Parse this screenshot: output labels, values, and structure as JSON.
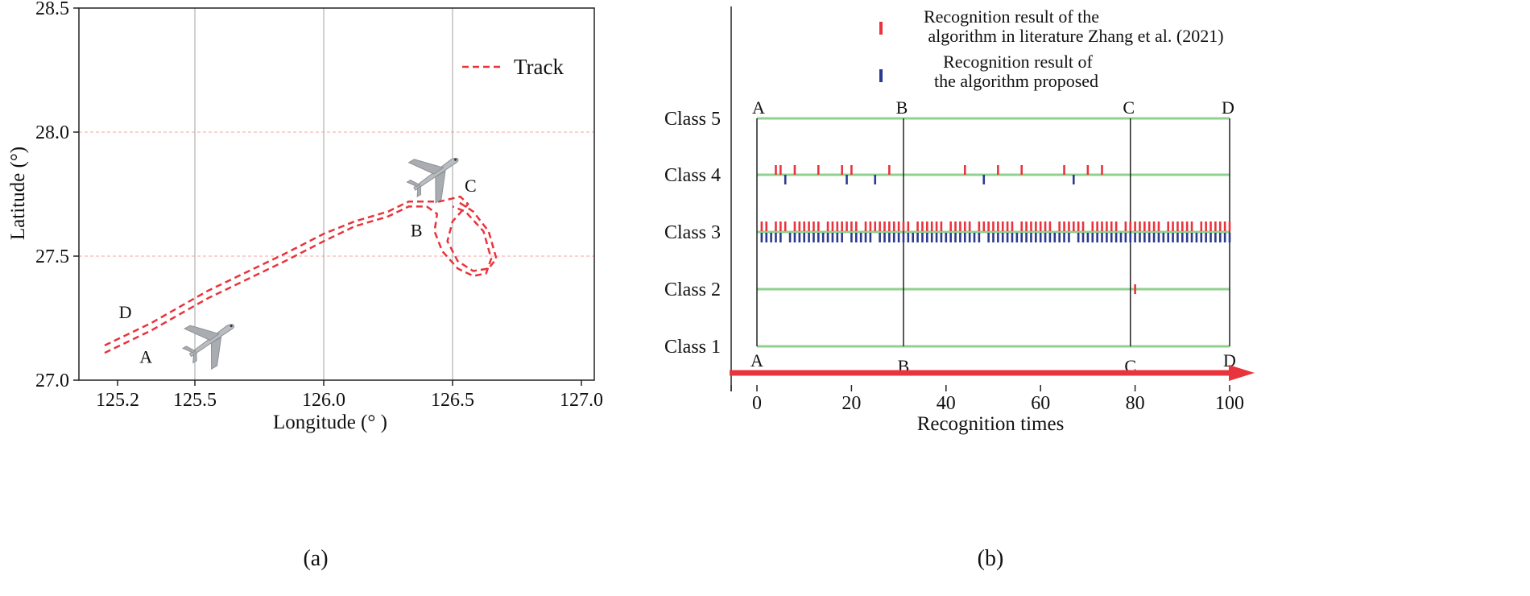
{
  "panel_a": {
    "caption": "(a)",
    "chart_data": {
      "type": "line",
      "title": "",
      "xlabel": "Longitude (° )",
      "ylabel": "Latitude (°)",
      "xlim": [
        125.05,
        127.05
      ],
      "ylim": [
        27.0,
        28.5
      ],
      "x_ticks": [
        "125.2",
        "125.5",
        "126.0",
        "126.5",
        "127.0"
      ],
      "x_tick_values": [
        125.2,
        125.5,
        126.0,
        126.5,
        127.0
      ],
      "y_ticks": [
        "27.0",
        "27.5",
        "28.0",
        "28.5"
      ],
      "y_tick_values": [
        27.0,
        27.5,
        28.0,
        28.5
      ],
      "vertical_gridlines": [
        125.5,
        126.0,
        126.5
      ],
      "horizontal_gridlines": [
        27.5,
        28.0
      ],
      "legend": {
        "position": "top-right",
        "label": "Track",
        "color": "#e8343c"
      },
      "series": [
        {
          "name": "Track",
          "color": "#e8343c",
          "x": [
            125.15,
            125.33,
            125.55,
            125.85,
            126.0,
            126.12,
            126.25,
            126.33,
            126.4,
            126.44,
            126.43,
            126.46,
            126.52,
            126.58,
            126.63,
            126.65,
            126.62,
            126.55,
            126.5
          ],
          "y": [
            27.11,
            27.2,
            27.33,
            27.48,
            27.56,
            27.62,
            27.66,
            27.7,
            27.7,
            27.67,
            27.6,
            27.52,
            27.45,
            27.42,
            27.43,
            27.49,
            27.6,
            27.68,
            27.7
          ]
        },
        {
          "name": "",
          "color": "#e8343c",
          "x": [
            125.15,
            125.33,
            125.55,
            125.85,
            126.0,
            126.12,
            126.25,
            126.33,
            126.45,
            126.53,
            126.56,
            126.5,
            126.48,
            126.52,
            126.58,
            126.64,
            126.67,
            126.64,
            126.58,
            126.52
          ],
          "y": [
            27.14,
            27.23,
            27.36,
            27.51,
            27.59,
            27.64,
            27.68,
            27.72,
            27.72,
            27.74,
            27.71,
            27.64,
            27.56,
            27.48,
            27.44,
            27.45,
            27.49,
            27.6,
            27.68,
            27.72
          ]
        }
      ],
      "annotations": [
        {
          "text": "A",
          "x": 125.31,
          "y": 27.07
        },
        {
          "text": "B",
          "x": 126.36,
          "y": 27.58
        },
        {
          "text": "C",
          "x": 126.57,
          "y": 27.76
        },
        {
          "text": "D",
          "x": 125.23,
          "y": 27.25
        }
      ],
      "aircraft_icons": [
        {
          "name": "airplane-icon",
          "x": 125.56,
          "y": 27.17
        },
        {
          "name": "airplane-icon",
          "x": 126.43,
          "y": 27.84
        }
      ]
    }
  },
  "panel_b": {
    "caption": "(b)",
    "chart_data": {
      "type": "scatter",
      "title": "",
      "xlabel": "Recognition times",
      "ylabel": "",
      "xlim": [
        -5,
        105
      ],
      "x_ticks": [
        "0",
        "20",
        "40",
        "60",
        "80",
        "100"
      ],
      "x_tick_values": [
        0,
        20,
        40,
        60,
        80,
        100
      ],
      "y_ticks": [
        "Class 1",
        "Class 2",
        "Class 3",
        "Class 4",
        "Class 5"
      ],
      "y_tick_values": [
        1,
        2,
        3,
        4,
        5
      ],
      "class_lines_color": "#8fd18f",
      "phase_boundaries": [
        {
          "label": "A",
          "x": 0
        },
        {
          "label": "B",
          "x": 31
        },
        {
          "label": "C",
          "x": 79
        },
        {
          "label": "D",
          "x": 100
        }
      ],
      "legend": {
        "position": "top-right",
        "entries": [
          {
            "label_line1": "Recognition result of the",
            "label_line2": "algorithm in literature Zhang et al. (2021)",
            "color": "#e8343c"
          },
          {
            "label_line1": "Recognition result of",
            "label_line2": "the algorithm proposed",
            "color": "#2b3a8f"
          }
        ]
      },
      "series": [
        {
          "name": "Recognition result of the algorithm in literature Zhang et al. (2021)",
          "color": "#e8343c",
          "class4_x": [
            4,
            5,
            8,
            13,
            18,
            20,
            28,
            44,
            51,
            56,
            65,
            70,
            73
          ],
          "class2_x": [
            80
          ],
          "class3_missing_x": [
            3,
            7,
            14,
            22,
            33,
            40,
            46,
            55,
            63,
            70,
            77,
            86,
            93
          ]
        },
        {
          "name": "Recognition result of the algorithm proposed",
          "color": "#2b3a8f",
          "class4_x": [
            6,
            19,
            25,
            48,
            67
          ],
          "class3_missing_x": [
            6,
            19,
            25,
            48,
            67
          ]
        }
      ]
    }
  }
}
